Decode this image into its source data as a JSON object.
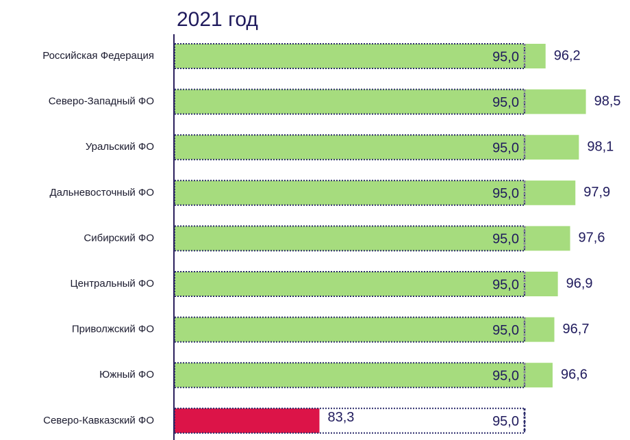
{
  "chart_data": {
    "type": "bar",
    "title": "2021 год",
    "categories": [
      "Российская Федерация",
      "Северо-Западный ФО",
      "Уральский ФО",
      "Дальневосточный ФО",
      "Сибирский ФО",
      "Центральный ФО",
      "Приволжский ФО",
      "Южный ФО",
      "Северо-Кавказский ФО"
    ],
    "values": [
      96.2,
      98.5,
      98.1,
      97.9,
      97.6,
      96.9,
      96.7,
      96.6,
      83.3
    ],
    "value_labels": [
      "96,2",
      "98,5",
      "98,1",
      "97,9",
      "97,6",
      "96,9",
      "96,7",
      "96,6",
      "83,3"
    ],
    "colors": [
      "#a6dc7e",
      "#a6dc7e",
      "#a6dc7e",
      "#a6dc7e",
      "#a6dc7e",
      "#a6dc7e",
      "#a6dc7e",
      "#a6dc7e",
      "#dc1448"
    ],
    "targets": [
      95,
      95,
      95,
      95,
      95,
      95,
      95,
      95,
      95
    ],
    "target_labels": [
      "95,0",
      "95,0",
      "95,0",
      "95,0",
      "95,0",
      "95,0",
      "95,0",
      "95,0",
      "95,0"
    ],
    "xlim": [
      75,
      100
    ]
  }
}
